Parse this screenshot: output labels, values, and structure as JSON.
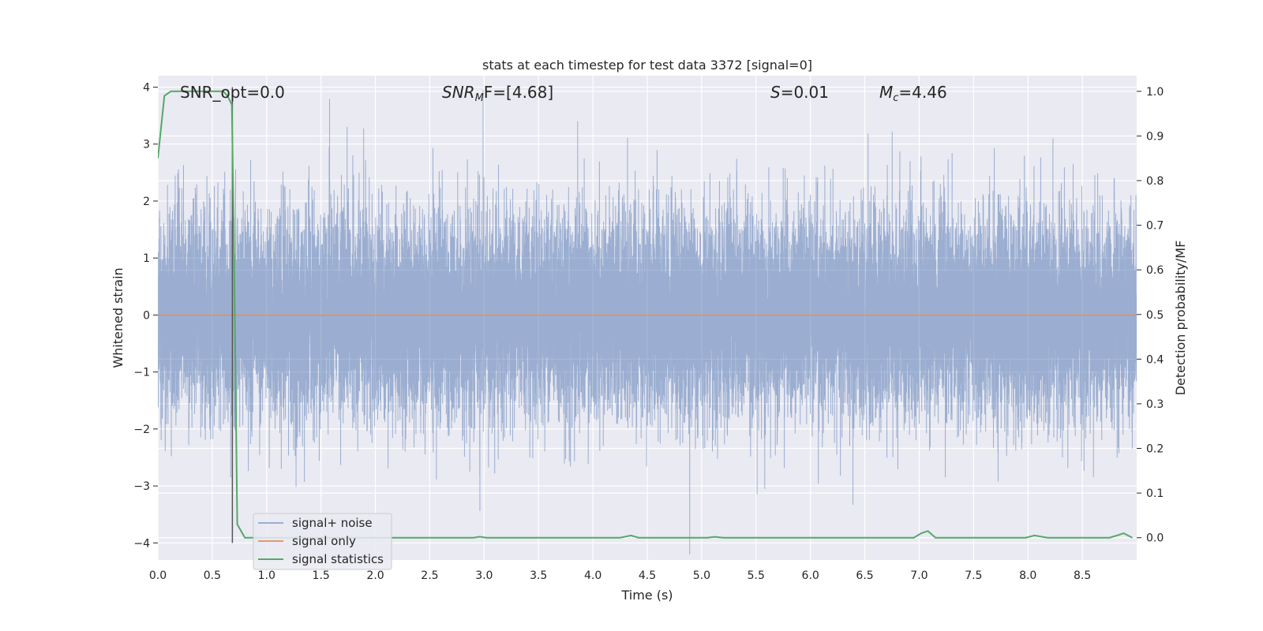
{
  "chart_data": {
    "type": "line",
    "title": "stats at each timestep for test data 3372 [signal=0]",
    "xlabel": "Time (s)",
    "ylabel": "Whitened strain",
    "y2label": "Detection probability/MF",
    "xlim": [
      0,
      9
    ],
    "ylim": [
      -4.3,
      4.2
    ],
    "y2lim": [
      -0.05,
      1.035
    ],
    "grid": true,
    "legend_position": "lower-left",
    "xticks": [
      "0.0",
      "0.5",
      "1.0",
      "1.5",
      "2.0",
      "2.5",
      "3.0",
      "3.5",
      "4.0",
      "4.5",
      "5.0",
      "5.5",
      "6.0",
      "6.5",
      "7.0",
      "7.5",
      "8.0",
      "8.5"
    ],
    "yticks": [
      "4",
      "3",
      "2",
      "1",
      "0",
      "−1",
      "−2",
      "−3",
      "−4"
    ],
    "y2ticks": [
      "1.0",
      "0.9",
      "0.8",
      "0.7",
      "0.6",
      "0.5",
      "0.4",
      "0.3",
      "0.2",
      "0.1",
      "0.0"
    ],
    "annotations": {
      "snr_opt": "SNR_opt=0.0",
      "snr_mf_name": "SNR",
      "snr_mf_sub": "M",
      "snr_mf_rest": "F=[4.68]",
      "s_name": "S",
      "s_rest": "=0.01",
      "mc_name": "M",
      "mc_sub": "c",
      "mc_rest": "=4.46"
    },
    "vline_x": 0.685,
    "series": [
      {
        "name": "signal+ noise",
        "axis": "left",
        "color": "#4c72b0",
        "alpha": 0.5,
        "sample_rate_hz": 2048,
        "noise_sigma": 0.9,
        "spikes": [
          {
            "x": 1.74,
            "y": 3.3
          },
          {
            "x": 2.99,
            "y": 3.95
          },
          {
            "x": 3.86,
            "y": 3.4
          },
          {
            "x": 8.23,
            "y": 3.1
          },
          {
            "x": 4.89,
            "y": -4.2
          },
          {
            "x": 5.51,
            "y": -3.15
          },
          {
            "x": 5.58,
            "y": -3.05
          },
          {
            "x": 7.24,
            "y": -2.85
          },
          {
            "x": 0.67,
            "y": -2.85
          },
          {
            "x": 3.42,
            "y": -2.5
          }
        ]
      },
      {
        "name": "signal only",
        "axis": "left",
        "color": "#dd8452",
        "points": [
          [
            0,
            0
          ],
          [
            9,
            0
          ]
        ]
      },
      {
        "name": "signal statistics",
        "axis": "right",
        "color": "#55a868",
        "points": [
          [
            0.0,
            0.85
          ],
          [
            0.06,
            0.99
          ],
          [
            0.12,
            1.0
          ],
          [
            0.6,
            1.0
          ],
          [
            0.64,
            0.99
          ],
          [
            0.68,
            0.97
          ],
          [
            0.7,
            0.65
          ],
          [
            0.73,
            0.03
          ],
          [
            0.8,
            0.0
          ],
          [
            2.9,
            0.0
          ],
          [
            2.96,
            0.002
          ],
          [
            3.02,
            0.0
          ],
          [
            4.25,
            0.0
          ],
          [
            4.35,
            0.005
          ],
          [
            4.42,
            0.0
          ],
          [
            5.05,
            0.0
          ],
          [
            5.12,
            0.002
          ],
          [
            5.2,
            0.0
          ],
          [
            6.95,
            0.0
          ],
          [
            7.02,
            0.01
          ],
          [
            7.08,
            0.015
          ],
          [
            7.15,
            0.0
          ],
          [
            7.98,
            0.0
          ],
          [
            8.06,
            0.005
          ],
          [
            8.18,
            0.0
          ],
          [
            8.75,
            0.0
          ],
          [
            8.82,
            0.005
          ],
          [
            8.88,
            0.01
          ],
          [
            8.96,
            0.0
          ]
        ]
      }
    ]
  }
}
